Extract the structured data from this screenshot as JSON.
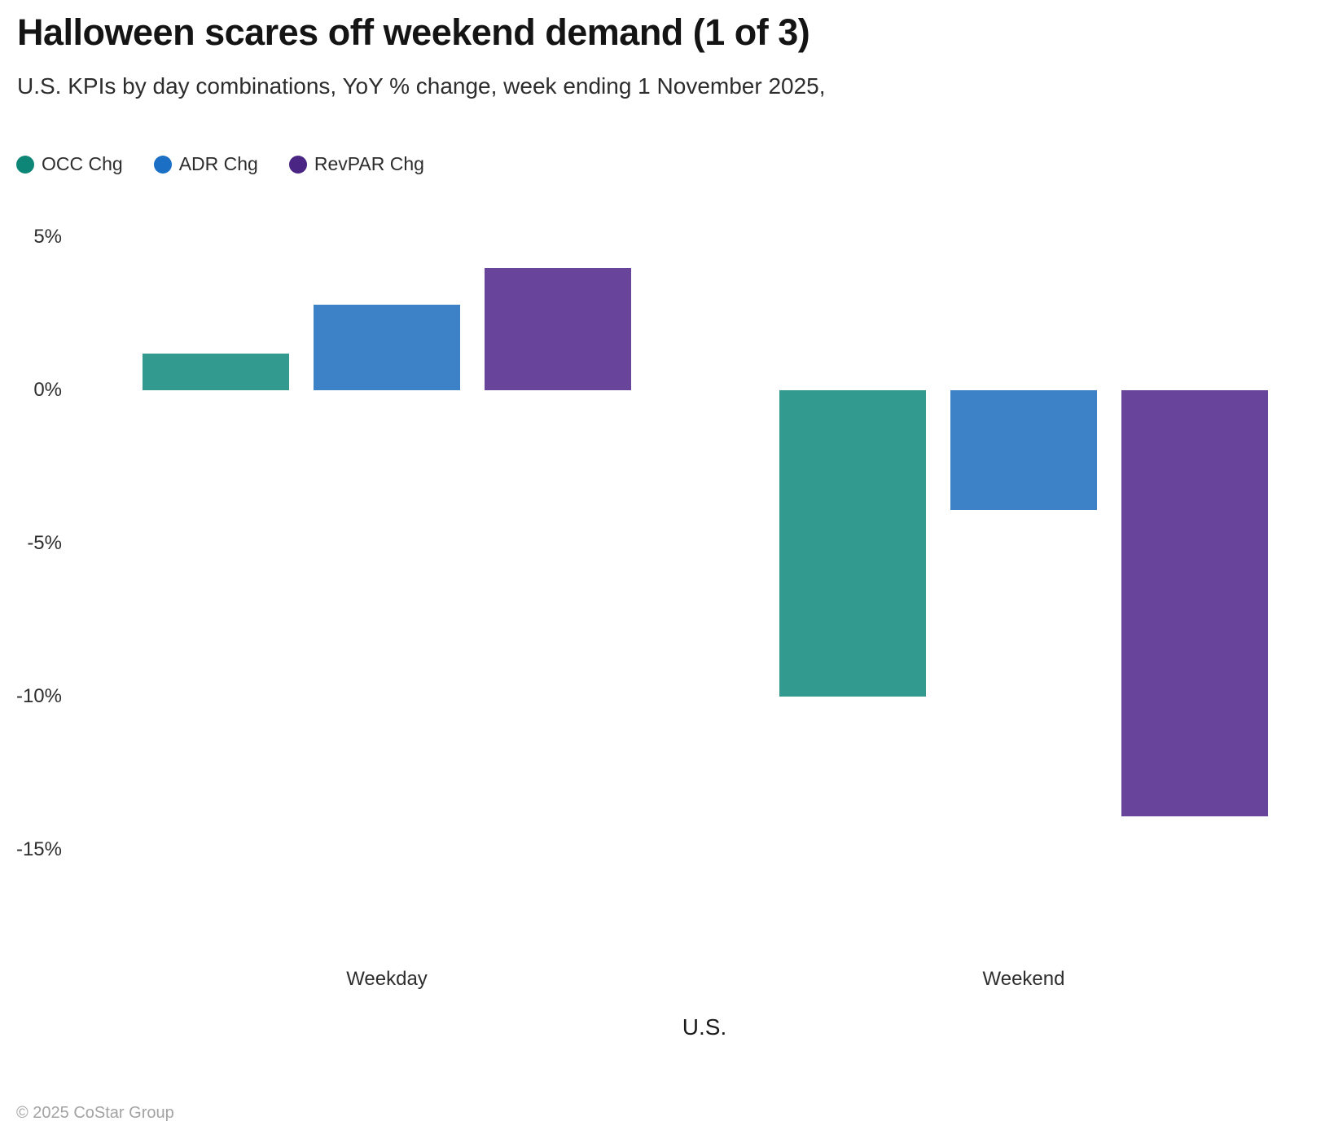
{
  "header": {
    "title": "Halloween scares off weekend demand (1 of 3)",
    "subtitle": "U.S. KPIs by day combinations, YoY % change, week ending 1 November 2025,"
  },
  "chart_data": {
    "type": "bar",
    "title": "Halloween scares off weekend demand (1 of 3)",
    "subtitle": "U.S. KPIs by day combinations, YoY % change, week ending 1 November 2025,",
    "categories": [
      "Weekday",
      "Weekend"
    ],
    "series": [
      {
        "name": "OCC Chg",
        "values": [
          1.2,
          -10.0
        ],
        "bar_color": "#339a8f",
        "legend_color": "#0e8677"
      },
      {
        "name": "ADR Chg",
        "values": [
          2.8,
          -3.9
        ],
        "bar_color": "#3d82c6",
        "legend_color": "#1b6fc4"
      },
      {
        "name": "RevPAR Chg",
        "values": [
          4.0,
          -13.9
        ],
        "bar_color": "#68459b",
        "legend_color": "#4b2583"
      }
    ],
    "xlabel": "U.S.",
    "ylabel": "",
    "y_ticks": [
      "5%",
      "0%",
      "-5%",
      "-10%",
      "-15%"
    ],
    "y_tick_values": [
      5,
      0,
      -5,
      -10,
      -15
    ],
    "ylim": [
      -16.5,
      5.5
    ],
    "grid": false,
    "legend_position": "top-left"
  },
  "footer": {
    "copyright": "© 2025 CoStar Group"
  }
}
